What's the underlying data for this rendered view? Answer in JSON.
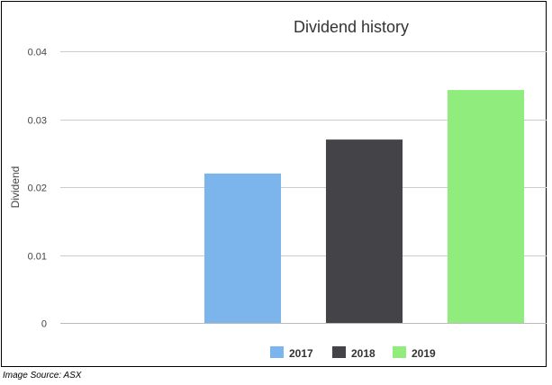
{
  "chart_data": {
    "type": "bar",
    "title": "Dividend history",
    "xlabel": "",
    "ylabel": "Dividend",
    "categories": [
      "2017",
      "2018",
      "2019"
    ],
    "values": [
      0.022,
      0.027,
      0.0343
    ],
    "ylim": [
      0,
      0.04
    ],
    "yticks": [
      0,
      0.01,
      0.02,
      0.03,
      0.04
    ],
    "ytick_labels": [
      "0",
      "0.01",
      "0.02",
      "0.03",
      "0.04"
    ],
    "colors": [
      "#7cb4ec",
      "#434348",
      "#90ed7d"
    ],
    "grid": true,
    "legend": {
      "position": "bottom",
      "entries": [
        "2017",
        "2018",
        "2019"
      ]
    }
  },
  "caption": "Image Source: ASX"
}
